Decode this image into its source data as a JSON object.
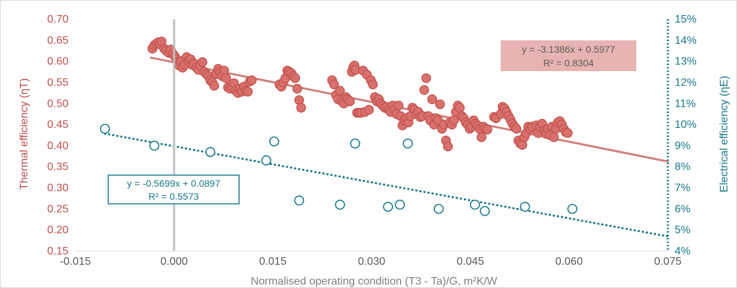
{
  "chart_data": {
    "type": "scatter",
    "xlabel": "Normalised operating condition (T3 - Ta)/G, m²K/W",
    "ylabel_left": "Thermal efficiency (ηT)",
    "ylabel_right": "Electrical efficiency (ηE)",
    "xlim": [
      -0.015,
      0.075
    ],
    "ylim_left": [
      0.15,
      0.7
    ],
    "ylim_right": [
      0.04,
      0.15
    ],
    "x_ticks": [
      "-0.015",
      "0.000",
      "0.015",
      "0.030",
      "0.045",
      "0.060",
      "0.075"
    ],
    "y_ticks_left": [
      "0.15",
      "0.20",
      "0.25",
      "0.30",
      "0.35",
      "0.40",
      "0.45",
      "0.50",
      "0.55",
      "0.60",
      "0.65",
      "0.70"
    ],
    "y_ticks_right": [
      "4%",
      "5%",
      "6%",
      "7%",
      "8%",
      "9%",
      "10%",
      "11%",
      "12%",
      "13%",
      "14%",
      "15%"
    ],
    "colors": {
      "thermal": "#c0504d",
      "thermal_fill": "#d9706b",
      "electrical": "#17798a",
      "trend_thermal": "#d07f7b",
      "box_thermal_bg": "#e7b4b2",
      "axis_grey": "#bfbfbf"
    },
    "series": [
      {
        "axis": "left",
        "marker": "filled-circle",
        "points": [
          [
            -0.0033,
            0.63
          ],
          [
            -0.003,
            0.638
          ],
          [
            -0.0027,
            0.642
          ],
          [
            -0.0024,
            0.645
          ],
          [
            -0.0021,
            0.64
          ],
          [
            -0.0019,
            0.647
          ],
          [
            -0.0015,
            0.63
          ],
          [
            -0.0012,
            0.625
          ],
          [
            -0.0008,
            0.62
          ],
          [
            -0.0005,
            0.628
          ],
          [
            -0.0002,
            0.618
          ],
          [
            0.0001,
            0.612
          ],
          [
            0.0004,
            0.605
          ],
          [
            0.0006,
            0.598
          ],
          [
            0.0008,
            0.59
          ],
          [
            0.001,
            0.6
          ],
          [
            0.0013,
            0.585
          ],
          [
            0.0016,
            0.592
          ],
          [
            0.0019,
            0.61
          ],
          [
            0.0022,
            0.6
          ],
          [
            0.0025,
            0.605
          ],
          [
            0.0027,
            0.592
          ],
          [
            0.003,
            0.595
          ],
          [
            0.0034,
            0.585
          ],
          [
            0.0037,
            0.58
          ],
          [
            0.004,
            0.59
          ],
          [
            0.0043,
            0.598
          ],
          [
            0.0046,
            0.575
          ],
          [
            0.0049,
            0.57
          ],
          [
            0.0052,
            0.565
          ],
          [
            0.0055,
            0.555
          ],
          [
            0.0058,
            0.55
          ],
          [
            0.0061,
            0.542
          ],
          [
            0.0064,
            0.57
          ],
          [
            0.0067,
            0.582
          ],
          [
            0.007,
            0.575
          ],
          [
            0.0073,
            0.565
          ],
          [
            0.0076,
            0.578
          ],
          [
            0.0079,
            0.56
          ],
          [
            0.0082,
            0.538
          ],
          [
            0.0085,
            0.535
          ],
          [
            0.0088,
            0.54
          ],
          [
            0.0091,
            0.548
          ],
          [
            0.0094,
            0.53
          ],
          [
            0.0097,
            0.525
          ],
          [
            0.01,
            0.535
          ],
          [
            0.0103,
            0.528
          ],
          [
            0.0106,
            0.54
          ],
          [
            0.0109,
            0.53
          ],
          [
            0.0112,
            0.528
          ],
          [
            0.0115,
            0.552
          ],
          [
            0.0118,
            0.555
          ],
          [
            0.016,
            0.545
          ],
          [
            0.0163,
            0.54
          ],
          [
            0.0166,
            0.55
          ],
          [
            0.0169,
            0.56
          ],
          [
            0.0172,
            0.578
          ],
          [
            0.0175,
            0.575
          ],
          [
            0.0178,
            0.572
          ],
          [
            0.0181,
            0.565
          ],
          [
            0.0184,
            0.56
          ],
          [
            0.0187,
            0.535
          ],
          [
            0.019,
            0.508
          ],
          [
            0.0193,
            0.49
          ],
          [
            0.024,
            0.555
          ],
          [
            0.0243,
            0.545
          ],
          [
            0.0246,
            0.52
          ],
          [
            0.0249,
            0.51
          ],
          [
            0.0252,
            0.53
          ],
          [
            0.0255,
            0.505
          ],
          [
            0.0258,
            0.5
          ],
          [
            0.0261,
            0.515
          ],
          [
            0.0264,
            0.51
          ],
          [
            0.0267,
            0.505
          ],
          [
            0.027,
            0.575
          ],
          [
            0.0272,
            0.585
          ],
          [
            0.0274,
            0.59
          ],
          [
            0.0276,
            0.58
          ],
          [
            0.0278,
            0.478
          ],
          [
            0.0281,
            0.478
          ],
          [
            0.0284,
            0.478
          ],
          [
            0.0287,
            0.578
          ],
          [
            0.029,
            0.48
          ],
          [
            0.0293,
            0.568
          ],
          [
            0.0296,
            0.485
          ],
          [
            0.0299,
            0.555
          ],
          [
            0.0302,
            0.545
          ],
          [
            0.0305,
            0.515
          ],
          [
            0.0308,
            0.505
          ],
          [
            0.0311,
            0.51
          ],
          [
            0.0314,
            0.5
          ],
          [
            0.0317,
            0.495
          ],
          [
            0.032,
            0.49
          ],
          [
            0.0323,
            0.492
          ],
          [
            0.0326,
            0.485
          ],
          [
            0.0329,
            0.48
          ],
          [
            0.0332,
            0.495
          ],
          [
            0.0335,
            0.485
          ],
          [
            0.0338,
            0.475
          ],
          [
            0.0341,
            0.495
          ],
          [
            0.0344,
            0.47
          ],
          [
            0.0347,
            0.448
          ],
          [
            0.035,
            0.46
          ],
          [
            0.0353,
            0.465
          ],
          [
            0.0356,
            0.455
          ],
          [
            0.0359,
            0.47
          ],
          [
            0.0362,
            0.49
          ],
          [
            0.0365,
            0.485
          ],
          [
            0.0368,
            0.475
          ],
          [
            0.0371,
            0.48
          ],
          [
            0.0374,
            0.468
          ],
          [
            0.0377,
            0.47
          ],
          [
            0.038,
            0.532
          ],
          [
            0.0383,
            0.56
          ],
          [
            0.0386,
            0.47
          ],
          [
            0.0389,
            0.46
          ],
          [
            0.0392,
            0.51
          ],
          [
            0.0395,
            0.45
          ],
          [
            0.0398,
            0.465
          ],
          [
            0.0401,
            0.46
          ],
          [
            0.0404,
            0.498
          ],
          [
            0.0407,
            0.44
          ],
          [
            0.041,
            0.45
          ],
          [
            0.0413,
            0.412
          ],
          [
            0.0416,
            0.398
          ],
          [
            0.0419,
            0.455
          ],
          [
            0.0422,
            0.45
          ],
          [
            0.0425,
            0.46
          ],
          [
            0.0428,
            0.48
          ],
          [
            0.0431,
            0.495
          ],
          [
            0.0434,
            0.49
          ],
          [
            0.0437,
            0.47
          ],
          [
            0.044,
            0.465
          ],
          [
            0.0443,
            0.455
          ],
          [
            0.0446,
            0.45
          ],
          [
            0.0449,
            0.44
          ],
          [
            0.0452,
            0.445
          ],
          [
            0.0455,
            0.46
          ],
          [
            0.0458,
            0.452
          ],
          [
            0.0461,
            0.448
          ],
          [
            0.0464,
            0.44
          ],
          [
            0.0467,
            0.42
          ],
          [
            0.047,
            0.445
          ],
          [
            0.0473,
            0.44
          ],
          [
            0.0476,
            0.438
          ],
          [
            0.0486,
            0.468
          ],
          [
            0.0489,
            0.465
          ],
          [
            0.0496,
            0.475
          ],
          [
            0.0499,
            0.492
          ],
          [
            0.0502,
            0.488
          ],
          [
            0.0505,
            0.48
          ],
          [
            0.0508,
            0.47
          ],
          [
            0.0511,
            0.462
          ],
          [
            0.0514,
            0.452
          ],
          [
            0.0517,
            0.445
          ],
          [
            0.052,
            0.44
          ],
          [
            0.0523,
            0.412
          ],
          [
            0.0526,
            0.405
          ],
          [
            0.0529,
            0.402
          ],
          [
            0.0532,
            0.42
          ],
          [
            0.0535,
            0.43
          ],
          [
            0.0538,
            0.445
          ],
          [
            0.0541,
            0.44
          ],
          [
            0.0544,
            0.445
          ],
          [
            0.055,
            0.448
          ],
          [
            0.0553,
            0.43
          ],
          [
            0.0556,
            0.445
          ],
          [
            0.0559,
            0.452
          ],
          [
            0.0562,
            0.435
          ],
          [
            0.0565,
            0.428
          ],
          [
            0.0568,
            0.44
          ],
          [
            0.0571,
            0.425
          ],
          [
            0.0574,
            0.445
          ],
          [
            0.0577,
            0.42
          ],
          [
            0.058,
            0.44
          ],
          [
            0.0583,
            0.455
          ],
          [
            0.0586,
            0.458
          ],
          [
            0.0589,
            0.45
          ],
          [
            0.0592,
            0.44
          ],
          [
            0.0595,
            0.432
          ],
          [
            0.0598,
            0.43
          ]
        ]
      },
      {
        "axis": "right",
        "marker": "hollow-circle",
        "points": [
          [
            -0.0105,
            0.098
          ],
          [
            -0.003,
            0.09
          ],
          [
            0.0055,
            0.087
          ],
          [
            0.014,
            0.083
          ],
          [
            0.0152,
            0.092
          ],
          [
            0.019,
            0.064
          ],
          [
            0.0252,
            0.062
          ],
          [
            0.0275,
            0.091
          ],
          [
            0.0325,
            0.061
          ],
          [
            0.0343,
            0.062
          ],
          [
            0.0355,
            0.091
          ],
          [
            0.0402,
            0.06
          ],
          [
            0.0457,
            0.062
          ],
          [
            0.0472,
            0.059
          ],
          [
            0.0533,
            0.061
          ],
          [
            0.0605,
            0.06
          ]
        ]
      }
    ],
    "trendlines": [
      {
        "axis": "left",
        "slope": -3.1386,
        "intercept": 0.5977,
        "x_from": -0.0035,
        "x_to": 0.075,
        "style": "solid"
      },
      {
        "axis": "right",
        "slope": -0.5699,
        "intercept": 0.0897,
        "x_from": -0.0105,
        "x_to": 0.075,
        "style": "dotted"
      }
    ],
    "annotations": {
      "thermal_equation": "y = -3.1386x + 0.5977",
      "thermal_r2": "R² = 0.8304",
      "electrical_equation": "y = -0.5699x + 0.0897",
      "electrical_r2": "R² = 0.5573"
    }
  }
}
